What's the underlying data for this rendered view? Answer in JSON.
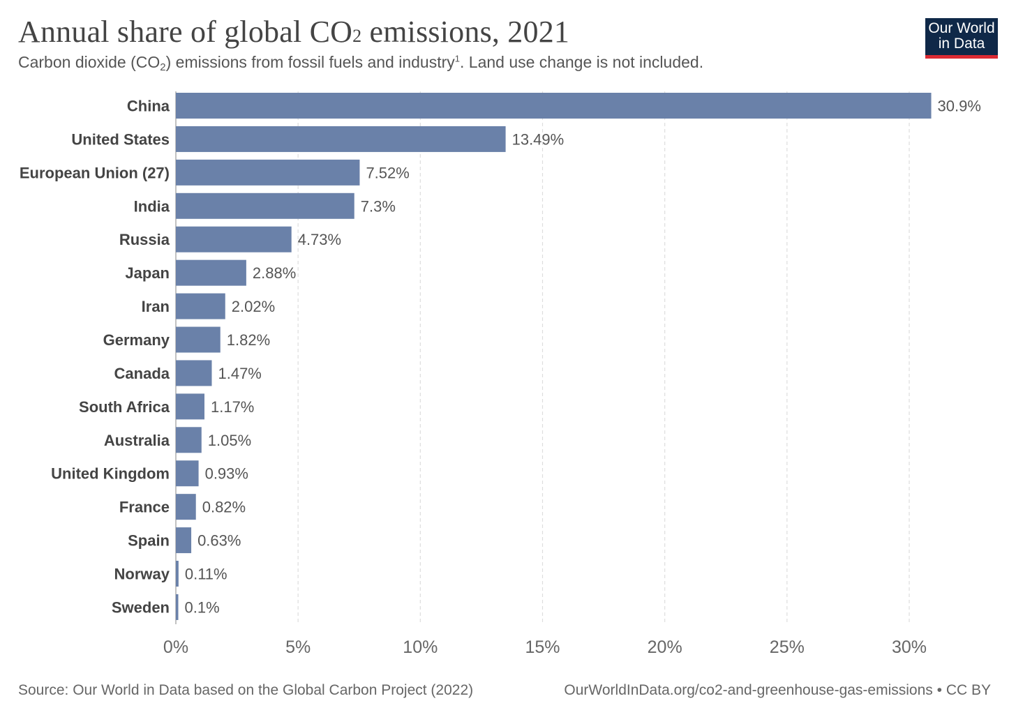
{
  "header": {
    "title_main": "Annual share of global CO",
    "title_sub": "2",
    "title_end": " emissions, 2021",
    "subtitle_a": "Carbon dioxide (CO",
    "subtitle_sub": "2",
    "subtitle_b": ") emissions from fossil fuels and industry",
    "subtitle_sup": "1",
    "subtitle_c": ". Land use change is not included.",
    "logo_line1": "Our World",
    "logo_line2": "in Data"
  },
  "footer": {
    "source": "Source: Our World in Data based on the Global Carbon Project (2022)",
    "link": "OurWorldInData.org/co2-and-greenhouse-gas-emissions",
    "separator": " • ",
    "license": "CC BY"
  },
  "colors": {
    "bar": "#6a81a9",
    "grid": "#dddddd",
    "brand_navy": "#0f2848",
    "brand_red": "#dc2a33"
  },
  "chart_data": {
    "type": "bar",
    "orientation": "horizontal",
    "title": "Annual share of global CO₂ emissions, 2021",
    "xlabel": "",
    "ylabel": "",
    "xlim": [
      0,
      30
    ],
    "grid": true,
    "ticks": [
      "0%",
      "5%",
      "10%",
      "15%",
      "20%",
      "25%",
      "30%"
    ],
    "tick_values": [
      0,
      5,
      10,
      15,
      20,
      25,
      30
    ],
    "categories": [
      "China",
      "United States",
      "European Union (27)",
      "India",
      "Russia",
      "Japan",
      "Iran",
      "Germany",
      "Canada",
      "South Africa",
      "Australia",
      "United Kingdom",
      "France",
      "Spain",
      "Norway",
      "Sweden"
    ],
    "values": [
      30.9,
      13.49,
      7.52,
      7.3,
      4.73,
      2.88,
      2.02,
      1.82,
      1.47,
      1.17,
      1.05,
      0.93,
      0.82,
      0.63,
      0.11,
      0.1
    ],
    "labels": [
      "30.9%",
      "13.49%",
      "7.52%",
      "7.3%",
      "4.73%",
      "2.88%",
      "2.02%",
      "1.82%",
      "1.47%",
      "1.17%",
      "1.05%",
      "0.93%",
      "0.82%",
      "0.63%",
      "0.11%",
      "0.1%"
    ]
  }
}
